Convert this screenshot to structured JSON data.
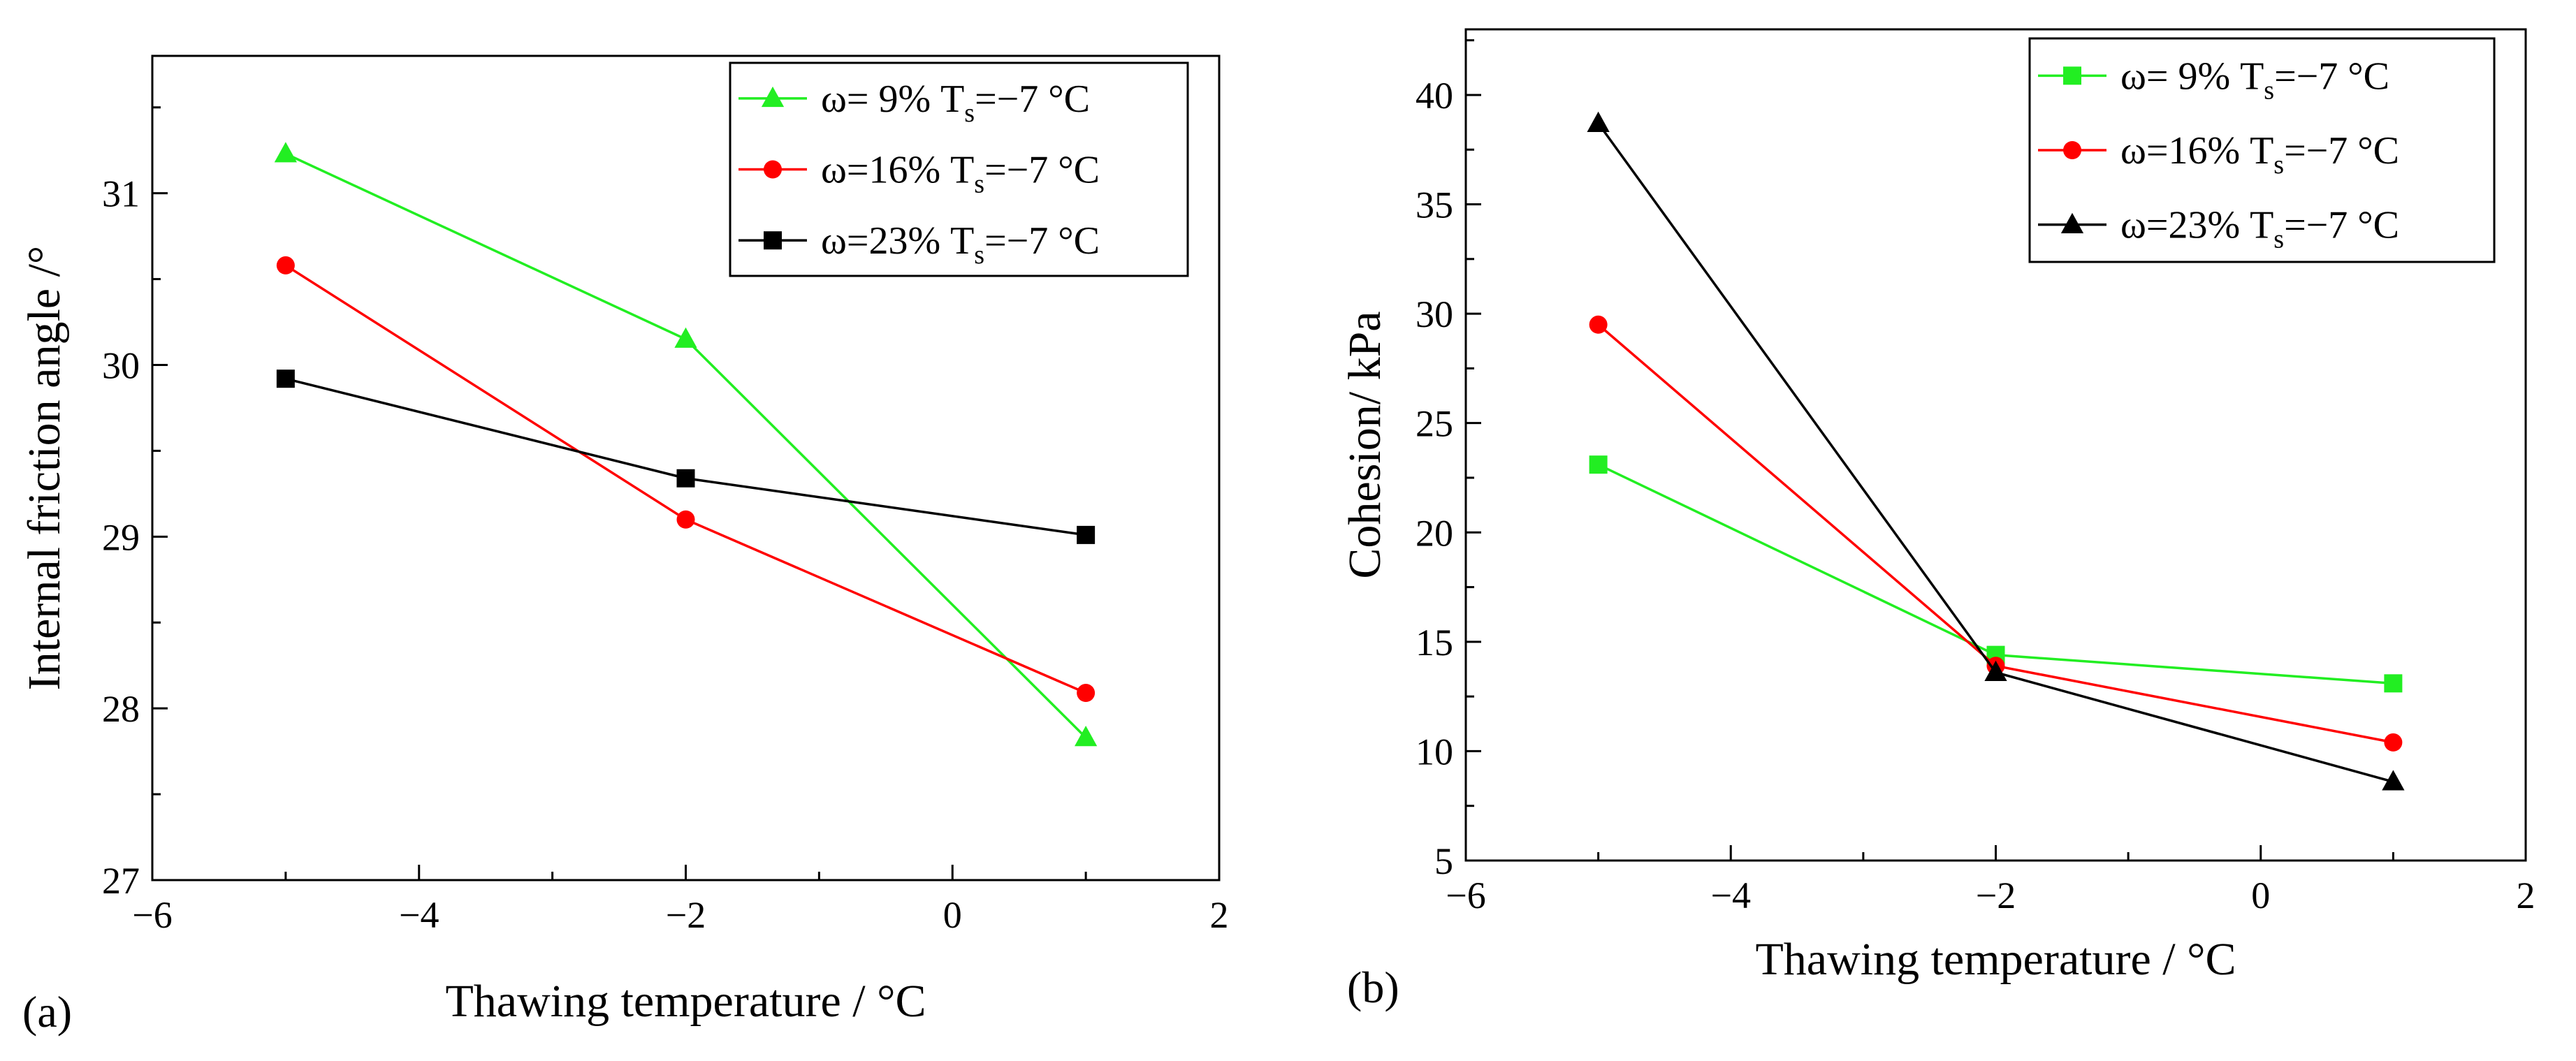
{
  "chart_data": [
    {
      "panel_label": "(a)",
      "type": "line",
      "xlabel": "Thawing temperature / °C",
      "ylabel": "Internal friction angle /°",
      "xlim": [
        -6,
        2
      ],
      "ylim": [
        27,
        31.8
      ],
      "xticks": [
        -6,
        -4,
        -2,
        0,
        2
      ],
      "xtick_labels": [
        "−6",
        "−4",
        "−2",
        "0",
        "2"
      ],
      "yticks": [
        27,
        28,
        29,
        30,
        31
      ],
      "ytick_labels": [
        "27",
        "28",
        "29",
        "30",
        "31"
      ],
      "x": [
        -5,
        -2,
        1
      ],
      "legend_position": "top-right",
      "series": [
        {
          "name": "ω= 9%  T",
          "name_sub": "s",
          "name_suffix": "=−7 °C",
          "color": "#22ee22",
          "marker": "triangle",
          "values": [
            31.23,
            30.15,
            27.83
          ]
        },
        {
          "name": "ω=16% T",
          "name_sub": "s",
          "name_suffix": "=−7 °C",
          "color": "#ff0000",
          "marker": "circle",
          "values": [
            30.58,
            29.1,
            28.09
          ]
        },
        {
          "name": "ω=23% T",
          "name_sub": "s",
          "name_suffix": "=−7 °C",
          "color": "#000000",
          "marker": "square",
          "values": [
            29.92,
            29.34,
            29.01
          ]
        }
      ]
    },
    {
      "panel_label": "(b)",
      "type": "line",
      "xlabel": "Thawing temperature / °C",
      "ylabel": "Cohesion/ kPa",
      "xlim": [
        -6,
        2
      ],
      "ylim": [
        5,
        43
      ],
      "xticks": [
        -6,
        -4,
        -2,
        0,
        2
      ],
      "xtick_labels": [
        "−6",
        "−4",
        "−2",
        "0",
        "2"
      ],
      "yticks": [
        5,
        10,
        15,
        20,
        25,
        30,
        35,
        40
      ],
      "ytick_labels": [
        "5",
        "10",
        "15",
        "20",
        "25",
        "30",
        "35",
        "40"
      ],
      "x": [
        -5,
        -2,
        1
      ],
      "legend_position": "top-right",
      "series": [
        {
          "name": "ω= 9%  T",
          "name_sub": "s",
          "name_suffix": "=−7 °C",
          "color": "#22ee22",
          "marker": "square",
          "values": [
            23.1,
            14.4,
            13.1
          ]
        },
        {
          "name": "ω=16% T",
          "name_sub": "s",
          "name_suffix": "=−7 °C",
          "color": "#ff0000",
          "marker": "circle",
          "values": [
            29.5,
            13.9,
            10.4
          ]
        },
        {
          "name": "ω=23% T",
          "name_sub": "s",
          "name_suffix": "=−7 °C",
          "color": "#000000",
          "marker": "triangle",
          "values": [
            38.7,
            13.6,
            8.6
          ]
        }
      ]
    }
  ]
}
